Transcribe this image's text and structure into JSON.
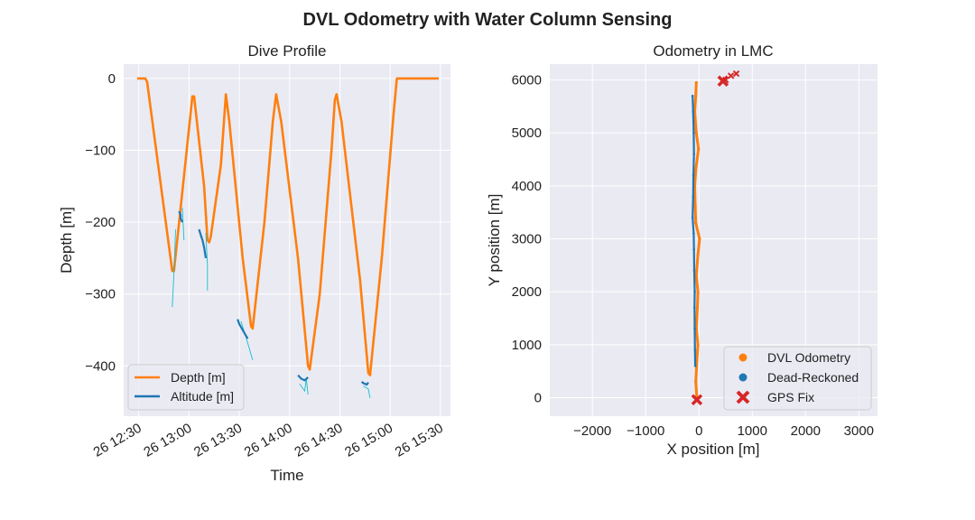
{
  "suptitle": "DVL Odometry with Water Column Sensing",
  "chart_data": [
    {
      "type": "line",
      "title": "Dive Profile",
      "xlabel": "Time",
      "ylabel": "Depth [m]",
      "xlim": [
        "12:21",
        "15:36"
      ],
      "ylim": [
        -470,
        20
      ],
      "xticks": [
        {
          "t": "12:30",
          "label": "26 12:30"
        },
        {
          "t": "13:00",
          "label": "26 13:00"
        },
        {
          "t": "13:30",
          "label": "26 13:30"
        },
        {
          "t": "14:00",
          "label": "26 14:00"
        },
        {
          "t": "14:30",
          "label": "26 14:30"
        },
        {
          "t": "15:00",
          "label": "26 15:00"
        },
        {
          "t": "15:30",
          "label": "26 15:30"
        }
      ],
      "yticks": [
        0,
        -100,
        -200,
        -300,
        -400
      ],
      "yticklabels": [
        "0",
        "−100",
        "−200",
        "−300",
        "−400"
      ],
      "grid": true,
      "legend": "lower-left",
      "series": [
        {
          "name": "Depth [m]",
          "color": "#ff7f0e",
          "points": [
            [
              "12:29",
              0
            ],
            [
              "12:34",
              0
            ],
            [
              "12:35",
              -5
            ],
            [
              "12:50",
              -268
            ],
            [
              "12:51",
              -268
            ],
            [
              "13:02",
              -25
            ],
            [
              "13:03",
              -25
            ],
            [
              "13:09",
              -150
            ],
            [
              "13:11",
              -225
            ],
            [
              "13:12",
              -228
            ],
            [
              "13:13",
              -220
            ],
            [
              "13:19",
              -120
            ],
            [
              "13:22",
              -22
            ],
            [
              "13:24",
              -60
            ],
            [
              "13:32",
              -250
            ],
            [
              "13:37",
              -345
            ],
            [
              "13:38",
              -348
            ],
            [
              "13:45",
              -200
            ],
            [
              "13:50",
              -60
            ],
            [
              "13:52",
              -22
            ],
            [
              "13:55",
              -60
            ],
            [
              "14:05",
              -250
            ],
            [
              "14:11",
              -400
            ],
            [
              "14:12",
              -405
            ],
            [
              "14:18",
              -300
            ],
            [
              "14:25",
              -100
            ],
            [
              "14:27",
              -30
            ],
            [
              "14:28",
              -22
            ],
            [
              "14:31",
              -60
            ],
            [
              "14:42",
              -280
            ],
            [
              "14:47",
              -410
            ],
            [
              "14:48",
              -413
            ],
            [
              "14:55",
              -250
            ],
            [
              "15:02",
              -50
            ],
            [
              "15:04",
              0
            ],
            [
              "15:05",
              0
            ],
            [
              "15:29",
              0
            ]
          ]
        },
        {
          "name": "Altitude [m]",
          "color": "#1f77b4",
          "segments": [
            [
              [
                "12:54",
                -185
              ],
              [
                "12:55",
                -190
              ],
              [
                "12:55",
                -195
              ],
              [
                "12:56",
                -200
              ]
            ],
            [
              [
                "13:06",
                -210
              ],
              [
                "13:07",
                -218
              ],
              [
                "13:08",
                -225
              ],
              [
                "13:09",
                -235
              ],
              [
                "13:10",
                -250
              ]
            ],
            [
              [
                "13:29",
                -335
              ],
              [
                "13:30",
                -342
              ],
              [
                "13:32",
                -350
              ],
              [
                "13:34",
                -358
              ],
              [
                "13:35",
                -362
              ]
            ],
            [
              [
                "14:05",
                -413
              ],
              [
                "14:07",
                -418
              ],
              [
                "14:09",
                -420
              ],
              [
                "14:11",
                -416
              ]
            ],
            [
              [
                "14:43",
                -422
              ],
              [
                "14:44",
                -424
              ],
              [
                "14:46",
                -426
              ],
              [
                "14:47",
                -423
              ]
            ]
          ]
        },
        {
          "color": "#17becf",
          "segments": [
            [
              [
                "12:52",
                -210
              ],
              [
                "12:51",
                -270
              ],
              [
                "12:50",
                -318
              ]
            ],
            [
              [
                "12:56",
                -180
              ],
              [
                "12:57",
                -225
              ]
            ],
            [
              [
                "13:10",
                -215
              ],
              [
                "13:11",
                -260
              ],
              [
                "13:11",
                -295
              ]
            ],
            [
              [
                "13:31",
                -338
              ],
              [
                "13:34",
                -360
              ],
              [
                "13:38",
                -392
              ]
            ],
            [
              [
                "14:06",
                -425
              ],
              [
                "14:09",
                -435
              ],
              [
                "14:10",
                -418
              ],
              [
                "14:11",
                -440
              ]
            ],
            [
              [
                "14:44",
                -428
              ],
              [
                "14:47",
                -432
              ],
              [
                "14:48",
                -445
              ]
            ]
          ]
        }
      ]
    },
    {
      "type": "scatter",
      "title": "Odometry in LMC",
      "xlabel": "X position [m]",
      "ylabel": "Y position [m]",
      "xlim": [
        -2800,
        3350
      ],
      "ylim": [
        -350,
        6300
      ],
      "xticks": [
        -2000,
        -1000,
        0,
        1000,
        2000,
        3000
      ],
      "xticklabels": [
        "−2000",
        "−1000",
        "0",
        "1000",
        "2000",
        "3000"
      ],
      "yticks": [
        0,
        1000,
        2000,
        3000,
        4000,
        5000,
        6000
      ],
      "yticklabels": [
        "0",
        "1000",
        "2000",
        "3000",
        "4000",
        "5000",
        "6000"
      ],
      "grid": true,
      "legend": "lower-right",
      "series": [
        {
          "name": "DVL Odometry",
          "color": "#ff7f0e",
          "points": [
            [
              -40,
              0
            ],
            [
              -60,
              300
            ],
            [
              -40,
              700
            ],
            [
              -20,
              1000
            ],
            [
              -50,
              1300
            ],
            [
              -30,
              1700
            ],
            [
              -20,
              2000
            ],
            [
              -50,
              2300
            ],
            [
              -20,
              2700
            ],
            [
              10,
              3000
            ],
            [
              -60,
              3300
            ],
            [
              -70,
              3600
            ],
            [
              -80,
              4000
            ],
            [
              -60,
              4300
            ],
            [
              -10,
              4700
            ],
            [
              -50,
              5000
            ],
            [
              -80,
              5400
            ],
            [
              -60,
              5700
            ],
            [
              -50,
              5950
            ]
          ]
        },
        {
          "name": "Dead-Reckoned",
          "color": "#1f77b4",
          "points": [
            [
              -70,
              600
            ],
            [
              -75,
              900
            ],
            [
              -80,
              1300
            ],
            [
              -85,
              1700
            ],
            [
              -80,
              2000
            ],
            [
              -90,
              2400
            ],
            [
              -95,
              2800
            ],
            [
              -100,
              3100
            ],
            [
              -120,
              3400
            ],
            [
              -110,
              3800
            ],
            [
              -105,
              4200
            ],
            [
              -95,
              4600
            ],
            [
              -100,
              5000
            ],
            [
              -110,
              5400
            ],
            [
              -120,
              5700
            ]
          ]
        },
        {
          "name": "GPS Fix",
          "color": "#d62728",
          "points": [
            [
              -40,
              -40
            ],
            [
              450,
              5980
            ],
            [
              600,
              6080
            ],
            [
              500,
              6000
            ],
            [
              700,
              6120
            ]
          ]
        }
      ]
    }
  ]
}
